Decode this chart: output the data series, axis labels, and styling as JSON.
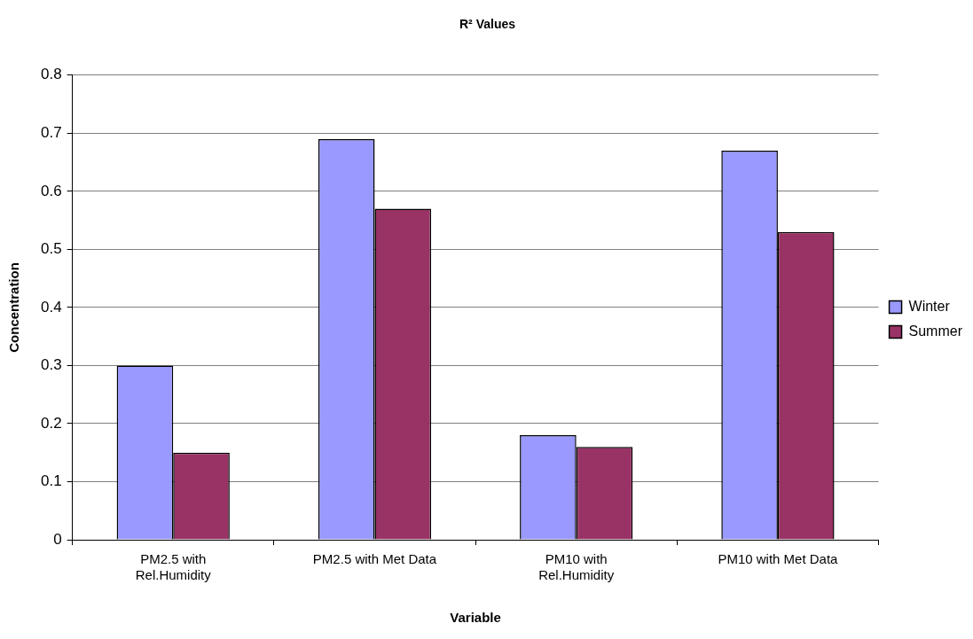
{
  "chart_data": {
    "type": "bar",
    "title": "R² Values",
    "xlabel": "Variable",
    "ylabel": "Concentration",
    "categories": [
      "PM2.5 with Rel.Humidity",
      "PM2.5 with Met Data",
      "PM10 with Rel.Humidity",
      "PM10 with Met Data"
    ],
    "series": [
      {
        "name": "Winter",
        "color": "#9999ff",
        "values": [
          0.3,
          0.69,
          0.18,
          0.67
        ]
      },
      {
        "name": "Summer",
        "color": "#993366",
        "values": [
          0.15,
          0.57,
          0.16,
          0.53
        ]
      }
    ],
    "ylim": [
      0,
      0.8
    ],
    "yticks": [
      0,
      0.1,
      0.2,
      0.3,
      0.4,
      0.5,
      0.6,
      0.7,
      0.8
    ],
    "grid": "y",
    "legend": "right"
  }
}
